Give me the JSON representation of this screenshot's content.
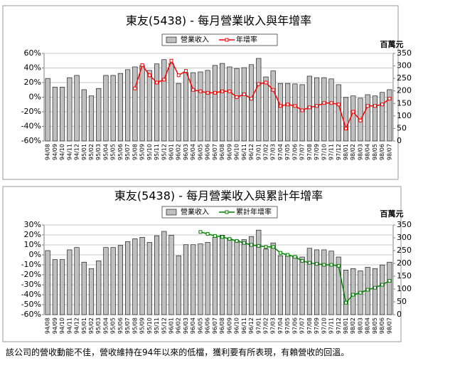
{
  "chart_data": [
    {
      "type": "combo",
      "title": "東友(5438) - 每月營業收入與年增率",
      "y2_label": "百萬元",
      "grid": true,
      "categories": [
        "94/08",
        "94/09",
        "94/10",
        "94/11",
        "94/12",
        "95/01",
        "95/02",
        "95/03",
        "95/04",
        "95/05",
        "95/06",
        "95/07",
        "95/08",
        "95/09",
        "95/10",
        "95/11",
        "95/12",
        "96/01",
        "96/02",
        "96/03",
        "96/04",
        "96/05",
        "96/06",
        "96/07",
        "96/08",
        "96/09",
        "96/10",
        "96/11",
        "96/12",
        "97/01",
        "97/02",
        "97/03",
        "97/04",
        "97/05",
        "97/06",
        "97/07",
        "97/08",
        "97/09",
        "97/10",
        "97/11",
        "97/12",
        "98/01",
        "98/02",
        "98/03",
        "98/04",
        "98/05",
        "98/06",
        "98/07"
      ],
      "series": [
        {
          "name": "營業收入",
          "color": "#c0c0c0",
          "axis": "y2",
          "values": [
            250,
            215,
            215,
            253,
            262,
            205,
            180,
            210,
            262,
            262,
            270,
            285,
            296,
            302,
            282,
            308,
            325,
            310,
            230,
            273,
            273,
            276,
            282,
            302,
            310,
            296,
            290,
            293,
            305,
            330,
            256,
            280,
            230,
            230,
            228,
            225,
            259,
            253,
            253,
            248,
            225,
            174,
            180,
            171,
            185,
            180,
            194,
            205
          ]
        },
        {
          "name": "年增率",
          "color": "#ff0000",
          "axis": "y",
          "values": [
            null,
            null,
            null,
            null,
            null,
            null,
            null,
            null,
            null,
            null,
            null,
            null,
            12,
            44,
            30,
            20,
            24,
            50,
            30,
            36,
            10,
            8,
            6,
            6,
            8,
            8,
            0,
            4,
            -2,
            18,
            20,
            10,
            -12,
            -10,
            -12,
            -18,
            -14,
            -12,
            -8,
            -8,
            -10,
            -43,
            -20,
            -32,
            -12,
            -12,
            -10,
            -2
          ]
        }
      ],
      "ylim": [
        -60,
        60
      ],
      "yticks": [
        {
          "value": -60,
          "label": "-60%"
        },
        {
          "value": -40,
          "label": "-40%"
        },
        {
          "value": -20,
          "label": "-20%"
        },
        {
          "value": 0,
          "label": "0%"
        },
        {
          "value": 20,
          "label": "20%"
        },
        {
          "value": 40,
          "label": "40%"
        },
        {
          "value": 60,
          "label": "60%"
        }
      ],
      "y2lim": [
        0,
        350
      ],
      "y2ticks": [
        0,
        50,
        100,
        150,
        200,
        250,
        300,
        350
      ]
    },
    {
      "type": "combo",
      "title": "東友(5438) - 每月營業收入與累計年增率",
      "y2_label": "百萬元",
      "grid": true,
      "categories": [
        "94/08",
        "94/09",
        "94/10",
        "94/11",
        "94/12",
        "95/01",
        "95/02",
        "95/03",
        "95/04",
        "95/05",
        "95/06",
        "95/07",
        "95/08",
        "95/09",
        "95/10",
        "95/11",
        "95/12",
        "96/01",
        "96/02",
        "96/03",
        "96/04",
        "96/05",
        "96/06",
        "96/07",
        "96/08",
        "96/09",
        "96/10",
        "96/11",
        "96/12",
        "97/01",
        "97/02",
        "97/03",
        "97/04",
        "97/05",
        "97/06",
        "97/07",
        "97/08",
        "97/09",
        "97/10",
        "97/11",
        "97/12",
        "98/01",
        "98/02",
        "98/03",
        "98/04",
        "98/05",
        "98/06",
        "98/07"
      ],
      "series": [
        {
          "name": "營業收入",
          "color": "#c0c0c0",
          "axis": "y2",
          "values": [
            250,
            215,
            215,
            253,
            262,
            205,
            180,
            210,
            262,
            262,
            270,
            285,
            296,
            302,
            282,
            308,
            325,
            310,
            230,
            273,
            273,
            276,
            282,
            302,
            310,
            296,
            290,
            293,
            305,
            330,
            256,
            280,
            230,
            230,
            228,
            225,
            259,
            253,
            253,
            248,
            225,
            174,
            180,
            171,
            185,
            180,
            194,
            205
          ]
        },
        {
          "name": "累計年增率",
          "color": "#008000",
          "axis": "y",
          "values": [
            null,
            null,
            null,
            null,
            null,
            null,
            null,
            null,
            null,
            null,
            null,
            null,
            null,
            null,
            null,
            null,
            null,
            null,
            null,
            null,
            null,
            23,
            21,
            19,
            18,
            16,
            14,
            12,
            10,
            9,
            8,
            8,
            2,
            0,
            -2,
            -6,
            -8,
            -9,
            -10,
            -10,
            -11,
            -48,
            -40,
            -38,
            -35,
            -33,
            -30,
            -26
          ]
        }
      ],
      "ylim": [
        -60,
        30
      ],
      "yticks": [
        {
          "value": -60,
          "label": "-60%"
        },
        {
          "value": -50,
          "label": "-50%"
        },
        {
          "value": -40,
          "label": "-40%"
        },
        {
          "value": -30,
          "label": "-30%"
        },
        {
          "value": -20,
          "label": "-20%"
        },
        {
          "value": -10,
          "label": "-10%"
        },
        {
          "value": 0,
          "label": "0%"
        },
        {
          "value": 10,
          "label": "10%"
        },
        {
          "value": 20,
          "label": "20%"
        },
        {
          "value": 30,
          "label": "30%"
        }
      ],
      "y2lim": [
        0,
        350
      ],
      "y2ticks": [
        0,
        50,
        100,
        150,
        200,
        250,
        300,
        350
      ]
    }
  ],
  "footer": "該公司的營收動能不佳，營收維持在94年以來的低檔，獲利要有所表現，有賴營收的回溫。"
}
